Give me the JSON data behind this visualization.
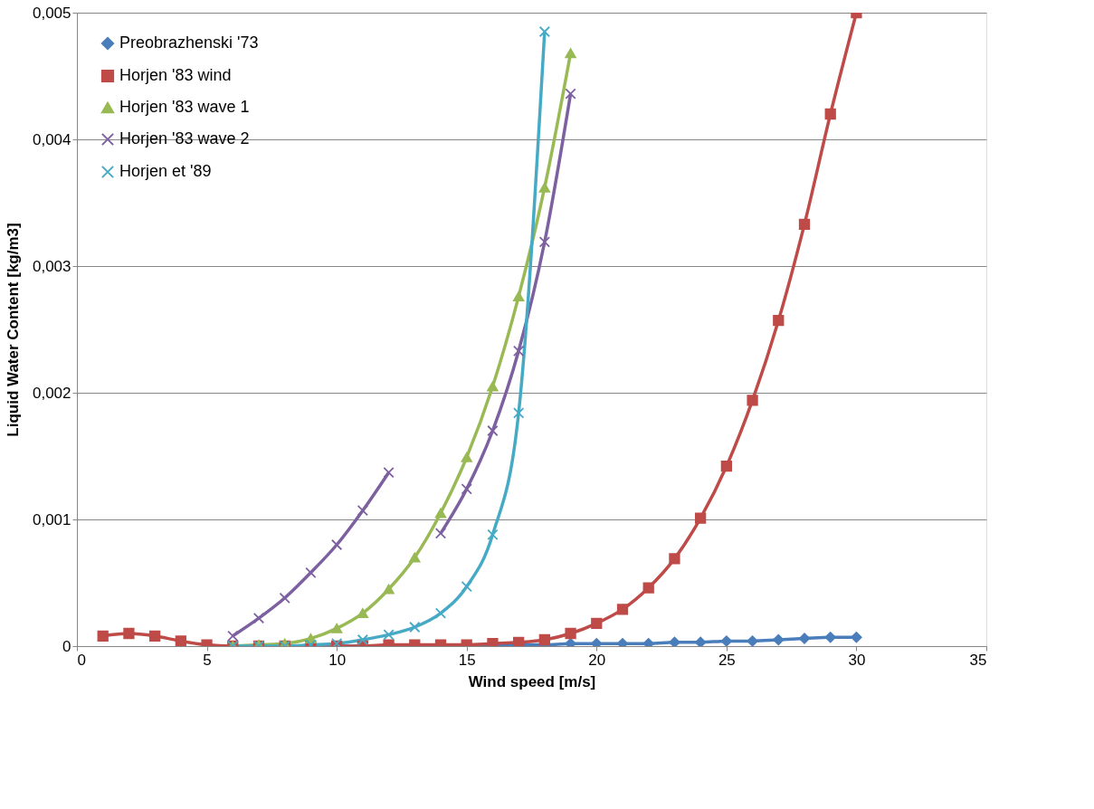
{
  "chart_data": {
    "type": "line",
    "xlabel": "Wind speed [m/s]",
    "ylabel": "Liquid Water Content [kg/m3]",
    "xlim": [
      0,
      35
    ],
    "xticks": [
      0,
      5,
      10,
      15,
      20,
      25,
      30,
      35
    ],
    "ylim": [
      0,
      0.005
    ],
    "yticks": [
      {
        "value": 0,
        "label": "0"
      },
      {
        "value": 0.001,
        "label": "0,001"
      },
      {
        "value": 0.002,
        "label": "0,002"
      },
      {
        "value": 0.003,
        "label": "0,003"
      },
      {
        "value": 0.004,
        "label": "0,004"
      },
      {
        "value": 0.005,
        "label": "0,005"
      }
    ],
    "grid": "y",
    "legend": "top left",
    "line_style": "solid",
    "series": [
      {
        "name": "Preobrazhenski '73",
        "color": "#4a7ebb",
        "marker": "diamond",
        "x": [
          6,
          7,
          8,
          9,
          10,
          11,
          12,
          13,
          14,
          15,
          16,
          17,
          18,
          19,
          20,
          21,
          22,
          23,
          24,
          25,
          26,
          27,
          28,
          29,
          30
        ],
        "values": [
          0,
          0,
          0,
          0,
          0,
          0,
          0,
          0,
          0,
          0,
          1e-05,
          1e-05,
          1e-05,
          2e-05,
          2e-05,
          2e-05,
          2e-05,
          3e-05,
          3e-05,
          4e-05,
          4e-05,
          5e-05,
          6e-05,
          7e-05,
          7e-05
        ]
      },
      {
        "name": "Horjen '83 wind",
        "color": "#be4b48",
        "marker": "square",
        "x": [
          1,
          2,
          3,
          4,
          5,
          6,
          7,
          8,
          9,
          10,
          11,
          12,
          13,
          14,
          15,
          16,
          17,
          18,
          19,
          20,
          21,
          22,
          23,
          24,
          25,
          26,
          27,
          28,
          29,
          30
        ],
        "values": [
          8e-05,
          0.0001,
          8e-05,
          4e-05,
          1e-05,
          0,
          0,
          0,
          0,
          0,
          0,
          1e-05,
          1e-05,
          1e-05,
          1e-05,
          2e-05,
          3e-05,
          5e-05,
          0.0001,
          0.00018,
          0.00029,
          0.00046,
          0.00069,
          0.00101,
          0.00142,
          0.00194,
          0.00257,
          0.00333,
          0.0042,
          0.005
        ]
      },
      {
        "name": "Horjen '83 wave 1",
        "color": "#98b954",
        "marker": "triangle",
        "x": [
          6,
          7,
          8,
          9,
          10,
          11,
          12,
          13,
          14,
          15,
          16,
          17,
          18,
          19
        ],
        "values": [
          0,
          1e-05,
          2e-05,
          6e-05,
          0.00014,
          0.00026,
          0.00045,
          0.0007,
          0.00105,
          0.00149,
          0.00205,
          0.00276,
          0.00362,
          0.00468
        ]
      },
      {
        "name": "Horjen '83 wave 2",
        "color": "#7d60a0",
        "marker": "cross",
        "x": [
          6,
          7,
          8,
          9,
          10,
          11,
          12,
          13,
          14,
          15,
          16,
          17,
          18,
          19
        ],
        "values": [
          8e-05,
          0.00022,
          0.00038,
          0.00058,
          0.0008,
          0.00107,
          0.00137,
          null,
          0.00089,
          0.00124,
          0.0017,
          0.00233,
          0.00319,
          0.00436
        ]
      },
      {
        "name": "Horjen et '89",
        "color": "#46aac5",
        "marker": "cross",
        "x": [
          6,
          7,
          8,
          9,
          10,
          11,
          12,
          13,
          14,
          15,
          16,
          17,
          18
        ],
        "values": [
          0,
          0,
          0,
          1e-05,
          2e-05,
          5e-05,
          9e-05,
          0.00015,
          0.00026,
          0.00047,
          0.00088,
          0.00184,
          0.00485
        ]
      }
    ]
  }
}
